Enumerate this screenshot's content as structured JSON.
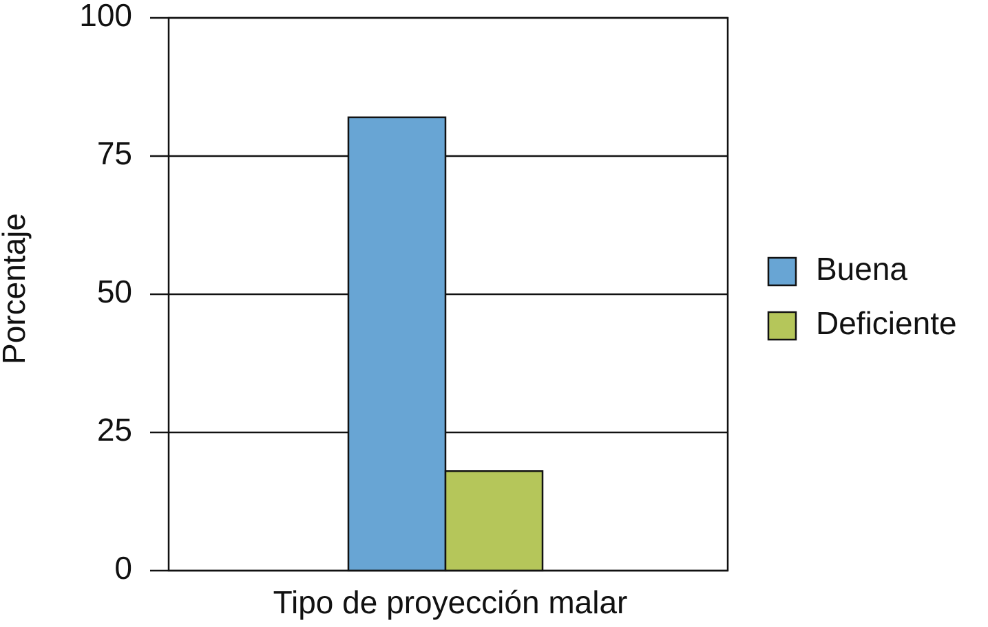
{
  "chart_data": {
    "type": "bar",
    "x_label": "Tipo de proyección malar",
    "y_label": "Porcentaje",
    "categories": [
      null
    ],
    "series": [
      {
        "name": "Buena",
        "color": "#68a5d4",
        "values": [
          82
        ]
      },
      {
        "name": "Deficiente",
        "color": "#b5c65a",
        "values": [
          18
        ]
      }
    ],
    "ylim": [
      0,
      100
    ],
    "yticks": [
      0,
      25,
      50,
      75,
      100
    ],
    "grid": true,
    "legend": "right"
  }
}
